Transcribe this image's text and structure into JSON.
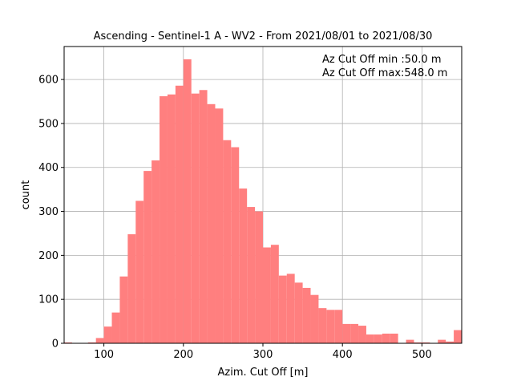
{
  "chart_data": {
    "type": "bar",
    "title": "Ascending - Sentinel-1 A - WV2 - From 2021/08/01 to 2021/08/30",
    "xlabel": "Azim. Cut Off [m]",
    "ylabel": "count",
    "xlim": [
      50,
      550
    ],
    "ylim": [
      0,
      675
    ],
    "xticks": [
      100,
      200,
      300,
      400,
      500
    ],
    "yticks": [
      0,
      100,
      200,
      300,
      400,
      500,
      600
    ],
    "grid": true,
    "bar_color": "#ff7f7f",
    "bin_width": 10,
    "bin_starts": [
      50,
      60,
      70,
      80,
      90,
      100,
      110,
      120,
      130,
      140,
      150,
      160,
      170,
      180,
      190,
      200,
      210,
      220,
      230,
      240,
      250,
      260,
      270,
      280,
      290,
      300,
      310,
      320,
      330,
      340,
      350,
      360,
      370,
      380,
      390,
      400,
      410,
      420,
      430,
      440,
      450,
      460,
      470,
      480,
      490,
      500,
      510,
      520,
      530,
      540
    ],
    "values": [
      2,
      0,
      0,
      2,
      12,
      38,
      70,
      152,
      248,
      324,
      392,
      416,
      562,
      566,
      586,
      646,
      568,
      576,
      544,
      534,
      462,
      446,
      352,
      310,
      300,
      218,
      224,
      154,
      158,
      138,
      126,
      110,
      80,
      76,
      76,
      44,
      44,
      40,
      20,
      20,
      22,
      22,
      0,
      8,
      2,
      2,
      0,
      8,
      4,
      30
    ],
    "annotations": [
      "Az Cut Off min :50.0 m",
      "Az Cut Off max:548.0 m"
    ]
  }
}
